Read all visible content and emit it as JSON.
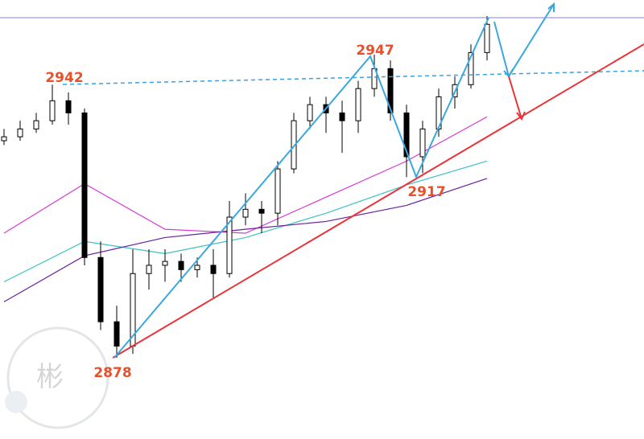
{
  "chart_data": {
    "type": "candlestick",
    "xlim": [
      -0.25,
      39.75
    ],
    "ylim": [
      2858.9,
      2960
    ],
    "up_color": "#ffffff",
    "down_color": "#000000",
    "x": [
      0,
      1,
      2,
      3,
      4,
      5,
      6,
      7,
      8,
      9,
      10,
      11,
      12,
      13,
      14,
      15,
      16,
      17,
      18,
      19,
      20,
      21,
      22,
      23,
      24,
      25,
      26,
      27,
      28,
      29,
      30
    ],
    "open": [
      2927.6,
      2928.5,
      2930.3,
      2932.2,
      2936.8,
      2934.0,
      2900.7,
      2885.9,
      2880.3,
      2897.0,
      2898.9,
      2899.8,
      2897.9,
      2898.9,
      2897.0,
      2910.0,
      2911.8,
      2910.9,
      2921.1,
      2932.2,
      2935.9,
      2934.0,
      2932.2,
      2939.6,
      2944.2,
      2934.0,
      2923.9,
      2930.3,
      2937.7,
      2940.5,
      2947.9
    ],
    "high": [
      2930.3,
      2932.2,
      2934.0,
      2940.5,
      2938.7,
      2935.0,
      2904.4,
      2889.6,
      2902.6,
      2902.6,
      2902.6,
      2901.6,
      2900.7,
      2902.6,
      2913.7,
      2915.5,
      2913.7,
      2922.9,
      2934.0,
      2937.7,
      2937.7,
      2936.8,
      2941.4,
      2947.4,
      2946.1,
      2935.9,
      2932.2,
      2939.6,
      2942.4,
      2949.8,
      2956.3
    ],
    "low": [
      2926.6,
      2927.6,
      2929.4,
      2931.3,
      2931.3,
      2898.9,
      2884.0,
      2877.6,
      2878.5,
      2893.3,
      2895.1,
      2895.1,
      2896.1,
      2891.4,
      2896.1,
      2908.1,
      2906.3,
      2908.1,
      2920.1,
      2930.3,
      2929.4,
      2924.8,
      2929.4,
      2937.7,
      2932.2,
      2919.2,
      2920.1,
      2928.5,
      2935.0,
      2939.6,
      2946.1
    ],
    "close": [
      2928.5,
      2930.3,
      2932.2,
      2936.8,
      2934.0,
      2900.7,
      2885.9,
      2880.3,
      2897.0,
      2898.9,
      2899.8,
      2897.9,
      2898.9,
      2897.0,
      2910.0,
      2911.8,
      2910.9,
      2921.1,
      2932.2,
      2935.9,
      2934.0,
      2932.2,
      2939.6,
      2944.2,
      2934.0,
      2923.9,
      2930.3,
      2937.7,
      2940.5,
      2947.9,
      2954.4
    ],
    "lines": [
      {
        "color": "#d63ad6",
        "x": [
          0,
          5,
          10,
          15,
          20,
          25,
          30
        ],
        "values": [
          2906.3,
          2917.7,
          2907.2,
          2906.3,
          2914.6,
          2922.9,
          2933.1
        ]
      },
      {
        "color": "#3cc0c0",
        "x": [
          0,
          5,
          10,
          15,
          20,
          25,
          30
        ],
        "values": [
          2895.1,
          2904.4,
          2901.6,
          2905.3,
          2910.9,
          2917.4,
          2922.9
        ]
      },
      {
        "color": "#6a1fa0",
        "x": [
          0,
          5,
          10,
          15,
          20,
          25,
          30
        ],
        "values": [
          2890.5,
          2901.1,
          2905.3,
          2907.2,
          2909.0,
          2912.7,
          2918.9
        ]
      }
    ],
    "annotations": [
      "2942",
      "2947",
      "2917",
      "2878"
    ],
    "watermark": "彬"
  }
}
